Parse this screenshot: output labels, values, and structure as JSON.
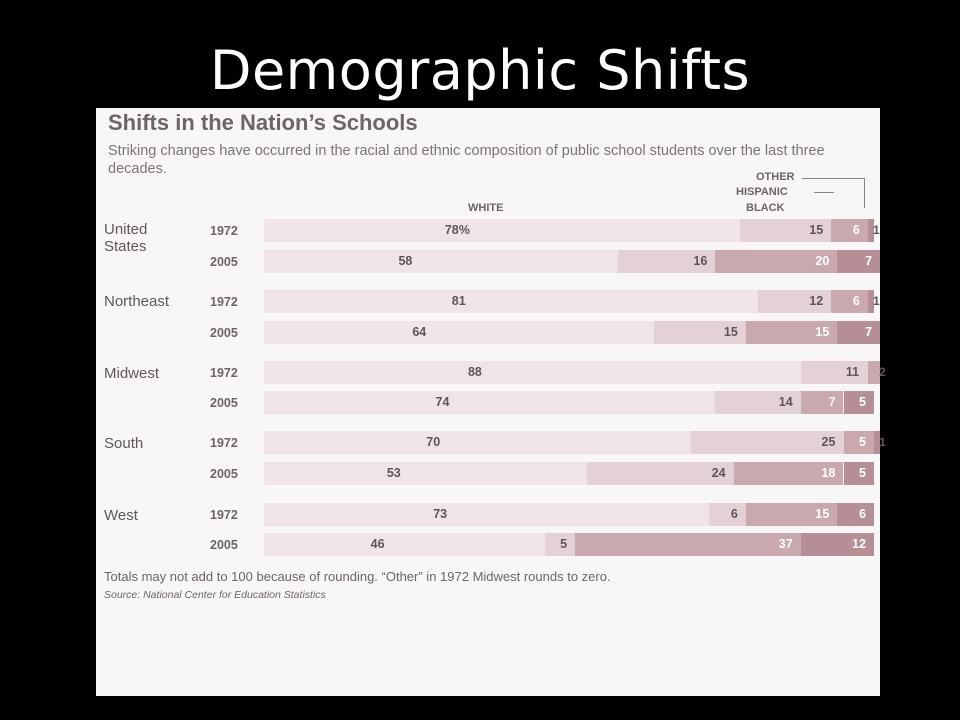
{
  "slide": {
    "title": "Demographic Shifts"
  },
  "chart_data": {
    "type": "bar",
    "stacked": true,
    "orientation": "horizontal",
    "title": "Shifts in the Nation’s Schools",
    "subtitle": "Striking changes have occurred in the racial and ethnic composition of public school students over the last three decades.",
    "legend": {
      "white": "WHITE",
      "black": "BLACK",
      "hispanic": "HISPANIC",
      "other": "OTHER"
    },
    "xlim": [
      0,
      100
    ],
    "groups": [
      {
        "region": "United States",
        "rows": [
          {
            "year": "1972",
            "white": 78,
            "black": 15,
            "hispanic": 6,
            "other": 1,
            "white_label": "78%"
          },
          {
            "year": "2005",
            "white": 58,
            "black": 16,
            "hispanic": 20,
            "other": 7
          }
        ]
      },
      {
        "region": "Northeast",
        "rows": [
          {
            "year": "1972",
            "white": 81,
            "black": 12,
            "hispanic": 6,
            "other": 1
          },
          {
            "year": "2005",
            "white": 64,
            "black": 15,
            "hispanic": 15,
            "other": 7
          }
        ]
      },
      {
        "region": "Midwest",
        "rows": [
          {
            "year": "1972",
            "white": 88,
            "black": 11,
            "hispanic": 2,
            "other": 0
          },
          {
            "year": "2005",
            "white": 74,
            "black": 14,
            "hispanic": 7,
            "other": 5
          }
        ]
      },
      {
        "region": "South",
        "rows": [
          {
            "year": "1972",
            "white": 70,
            "black": 25,
            "hispanic": 5,
            "other": 1
          },
          {
            "year": "2005",
            "white": 53,
            "black": 24,
            "hispanic": 18,
            "other": 5
          }
        ]
      },
      {
        "region": "West",
        "rows": [
          {
            "year": "1972",
            "white": 73,
            "black": 6,
            "hispanic": 15,
            "other": 6
          },
          {
            "year": "2005",
            "white": 46,
            "black": 5,
            "hispanic": 37,
            "other": 12
          }
        ]
      }
    ],
    "colors": {
      "white": "#f1e4e7",
      "black": "#e3d1d5",
      "hispanic": "#c9a8ae",
      "other": "#b58e96"
    },
    "footnote": "Totals may not add to 100 because of rounding. “Other” in 1972 Midwest rounds to zero.",
    "source": "Source: National Center for Education Statistics"
  }
}
